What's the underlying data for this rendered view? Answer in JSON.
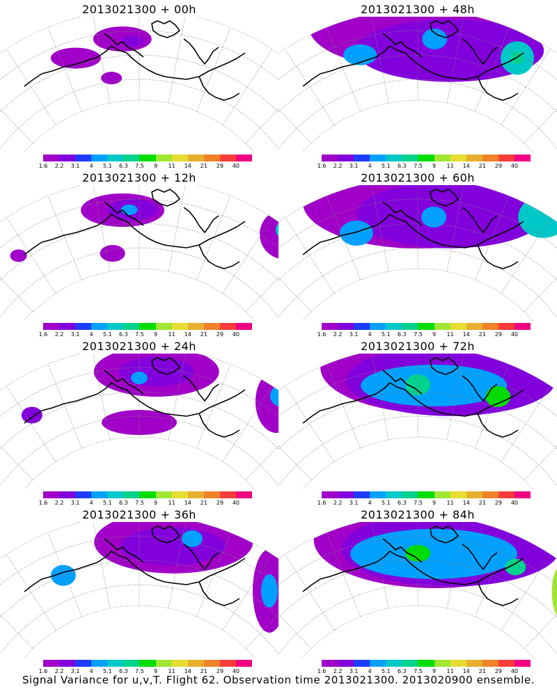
{
  "footer": "Signal Variance for u,v,T. Flight 62. Observation time 2013021300. 2013020900 ensemble.",
  "colorbar": {
    "levels": [
      "1.6",
      "2.2",
      "3.1",
      "4",
      "5.1",
      "6.3",
      "7.5",
      "9",
      "11",
      "14",
      "21",
      "29",
      "40"
    ],
    "colors": [
      "#a000c8",
      "#8200dc",
      "#1e3cff",
      "#00a0ff",
      "#00c8c8",
      "#00d28c",
      "#00dc00",
      "#a0e632",
      "#e6dc32",
      "#e6af2d",
      "#f08228",
      "#fa3c3c",
      "#f00082"
    ]
  },
  "chart_data": [
    {
      "type": "heatmap",
      "title": "2013021300 + 00h",
      "legend_levels": [
        1.6,
        2.2,
        3.1,
        4,
        5.1,
        6.3,
        7.5,
        9,
        11,
        14,
        21,
        29,
        40
      ],
      "blobs": [
        {
          "x": -0.2,
          "y": 0.05,
          "rx": 0.12,
          "ry": 0.05,
          "level": 0
        },
        {
          "x": -0.05,
          "y": 0.12,
          "rx": 0.14,
          "ry": 0.06,
          "level": 0
        },
        {
          "x": -0.02,
          "y": 0.1,
          "rx": 0.05,
          "ry": 0.025,
          "level": 1
        },
        {
          "x": -0.1,
          "y": -0.15,
          "rx": 0.05,
          "ry": 0.03,
          "level": 0
        },
        {
          "x": 0.47,
          "y": 0.3,
          "rx": 0.07,
          "ry": 0.12,
          "level": 0
        },
        {
          "x": 0.47,
          "y": 0.3,
          "rx": 0.03,
          "ry": 0.06,
          "level": 1
        }
      ]
    },
    {
      "type": "heatmap",
      "title": "2013021300 + 48h",
      "legend_levels": [
        1.6,
        2.2,
        3.1,
        4,
        5.1,
        6.3,
        7.5,
        9,
        11,
        14,
        21,
        29,
        40
      ],
      "blobs": [
        {
          "x": 0.0,
          "y": 0.2,
          "rx": 0.52,
          "ry": 0.2,
          "level": 0
        },
        {
          "x": 0.1,
          "y": 0.05,
          "rx": 0.45,
          "ry": 0.15,
          "level": 1
        },
        {
          "x": -0.18,
          "y": 0.06,
          "rx": 0.08,
          "ry": 0.05,
          "level": 3
        },
        {
          "x": 0.05,
          "y": 0.12,
          "rx": 0.06,
          "ry": 0.05,
          "level": 3
        },
        {
          "x": 0.3,
          "y": 0.15,
          "rx": 0.08,
          "ry": 0.08,
          "level": 4
        },
        {
          "x": 0.3,
          "y": 0.15,
          "rx": 0.03,
          "ry": 0.03,
          "level": 5
        }
      ]
    },
    {
      "type": "heatmap",
      "title": "2013021300 + 12h",
      "legend_levels": [
        1.6,
        2.2,
        3.1,
        4,
        5.1,
        6.3,
        7.5,
        9,
        11,
        14,
        21,
        29,
        40
      ],
      "blobs": [
        {
          "x": -0.05,
          "y": 0.1,
          "rx": 0.2,
          "ry": 0.08,
          "level": 0
        },
        {
          "x": -0.02,
          "y": 0.1,
          "rx": 0.12,
          "ry": 0.05,
          "level": 1
        },
        {
          "x": -0.03,
          "y": 0.1,
          "rx": 0.04,
          "ry": 0.025,
          "level": 3
        },
        {
          "x": -0.4,
          "y": 0.05,
          "rx": 0.04,
          "ry": 0.03,
          "level": 0
        },
        {
          "x": -0.1,
          "y": -0.2,
          "rx": 0.06,
          "ry": 0.04,
          "level": 0
        },
        {
          "x": 0.42,
          "y": 0.28,
          "rx": 0.12,
          "ry": 0.12,
          "level": 0
        },
        {
          "x": 0.42,
          "y": 0.32,
          "rx": 0.06,
          "ry": 0.05,
          "level": 4
        }
      ]
    },
    {
      "type": "heatmap",
      "title": "2013021300 + 60h",
      "legend_levels": [
        1.6,
        2.2,
        3.1,
        4,
        5.1,
        6.3,
        7.5,
        9,
        11,
        14,
        21,
        29,
        40
      ],
      "blobs": [
        {
          "x": 0.0,
          "y": 0.15,
          "rx": 0.55,
          "ry": 0.22,
          "level": 0
        },
        {
          "x": 0.1,
          "y": 0.08,
          "rx": 0.45,
          "ry": 0.16,
          "level": 1
        },
        {
          "x": -0.2,
          "y": 0.0,
          "rx": 0.08,
          "ry": 0.06,
          "level": 3
        },
        {
          "x": 0.05,
          "y": 0.05,
          "rx": 0.06,
          "ry": 0.05,
          "level": 3
        },
        {
          "x": 0.35,
          "y": 0.3,
          "rx": 0.12,
          "ry": 0.1,
          "level": 4
        }
      ]
    },
    {
      "type": "heatmap",
      "title": "2013021300 + 24h",
      "legend_levels": [
        1.6,
        2.2,
        3.1,
        4,
        5.1,
        6.3,
        7.5,
        9,
        11,
        14,
        21,
        29,
        40
      ],
      "blobs": [
        {
          "x": 0.05,
          "y": 0.15,
          "rx": 0.3,
          "ry": 0.12,
          "level": 0
        },
        {
          "x": 0.05,
          "y": 0.15,
          "rx": 0.18,
          "ry": 0.07,
          "level": 1
        },
        {
          "x": 0.0,
          "y": 0.1,
          "rx": 0.04,
          "ry": 0.03,
          "level": 3
        },
        {
          "x": -0.35,
          "y": 0.05,
          "rx": 0.05,
          "ry": 0.04,
          "level": 1
        },
        {
          "x": 0.0,
          "y": -0.22,
          "rx": 0.18,
          "ry": 0.06,
          "level": 0
        },
        {
          "x": 0.4,
          "y": 0.25,
          "rx": 0.1,
          "ry": 0.15,
          "level": 0
        },
        {
          "x": 0.4,
          "y": 0.3,
          "rx": 0.05,
          "ry": 0.05,
          "level": 3
        }
      ]
    },
    {
      "type": "heatmap",
      "title": "2013021300 + 72h",
      "legend_levels": [
        1.6,
        2.2,
        3.1,
        4,
        5.1,
        6.3,
        7.5,
        9,
        11,
        14,
        21,
        29,
        40
      ],
      "blobs": [
        {
          "x": 0.05,
          "y": 0.18,
          "rx": 0.55,
          "ry": 0.22,
          "level": 0
        },
        {
          "x": 0.1,
          "y": 0.1,
          "rx": 0.5,
          "ry": 0.17,
          "level": 1
        },
        {
          "x": 0.05,
          "y": 0.05,
          "rx": 0.35,
          "ry": 0.1,
          "level": 3
        },
        {
          "x": 0.0,
          "y": 0.05,
          "rx": 0.06,
          "ry": 0.05,
          "level": 5
        },
        {
          "x": 0.25,
          "y": 0.08,
          "rx": 0.06,
          "ry": 0.05,
          "level": 6
        }
      ]
    },
    {
      "type": "heatmap",
      "title": "2013021300 + 36h",
      "legend_levels": [
        1.6,
        2.2,
        3.1,
        4,
        5.1,
        6.3,
        7.5,
        9,
        11,
        14,
        21,
        29,
        40
      ],
      "blobs": [
        {
          "x": 0.1,
          "y": 0.15,
          "rx": 0.38,
          "ry": 0.15,
          "level": 0
        },
        {
          "x": 0.1,
          "y": 0.12,
          "rx": 0.25,
          "ry": 0.09,
          "level": 1
        },
        {
          "x": -0.25,
          "y": 0.0,
          "rx": 0.06,
          "ry": 0.05,
          "level": 3
        },
        {
          "x": 0.15,
          "y": 0.2,
          "rx": 0.05,
          "ry": 0.04,
          "level": 3
        },
        {
          "x": 0.42,
          "y": 0.1,
          "rx": 0.08,
          "ry": 0.2,
          "level": 0
        },
        {
          "x": 0.42,
          "y": 0.1,
          "rx": 0.04,
          "ry": 0.08,
          "level": 3
        }
      ]
    },
    {
      "type": "heatmap",
      "title": "2013021300 + 84h",
      "legend_levels": [
        1.6,
        2.2,
        3.1,
        4,
        5.1,
        6.3,
        7.5,
        9,
        11,
        14,
        21,
        29,
        40
      ],
      "blobs": [
        {
          "x": 0.05,
          "y": 0.15,
          "rx": 0.58,
          "ry": 0.23,
          "level": 0
        },
        {
          "x": 0.1,
          "y": 0.1,
          "rx": 0.52,
          "ry": 0.18,
          "level": 1
        },
        {
          "x": 0.05,
          "y": 0.05,
          "rx": 0.4,
          "ry": 0.12,
          "level": 3
        },
        {
          "x": 0.0,
          "y": 0.05,
          "rx": 0.06,
          "ry": 0.04,
          "level": 6
        },
        {
          "x": 0.45,
          "y": 0.15,
          "rx": 0.04,
          "ry": 0.12,
          "level": 7
        },
        {
          "x": 0.3,
          "y": 0.12,
          "rx": 0.05,
          "ry": 0.04,
          "level": 5
        }
      ]
    }
  ]
}
